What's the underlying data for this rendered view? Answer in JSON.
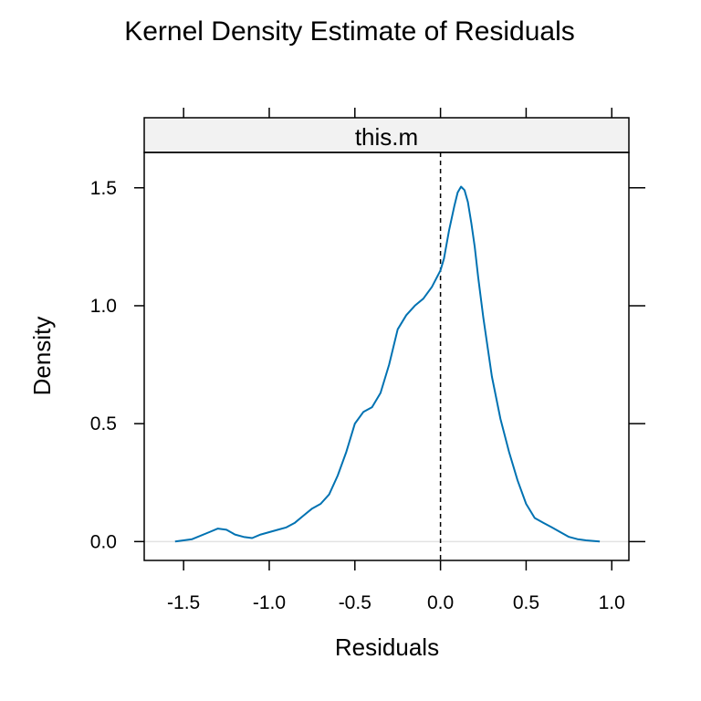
{
  "chart_data": {
    "type": "line",
    "title": "Kernel Density Estimate of Residuals",
    "panel_label": "this.m",
    "xlabel": "Residuals",
    "ylabel": "Density",
    "xlim": [
      -1.73,
      1.1
    ],
    "ylim": [
      -0.08,
      1.65
    ],
    "x_ticks": [
      -1.5,
      -1.0,
      -0.5,
      0.0,
      0.5,
      1.0
    ],
    "x_tick_labels": [
      "-1.5",
      "-1.0",
      "-0.5",
      "0.0",
      "0.5",
      "1.0"
    ],
    "y_ticks": [
      0.0,
      0.5,
      1.0,
      1.5
    ],
    "y_tick_labels": [
      "0.0",
      "0.5",
      "1.0",
      "1.5"
    ],
    "reference_line": {
      "x": 0.0,
      "style": "dashed"
    },
    "baseline": {
      "y": 0.0
    },
    "series": [
      {
        "color": "#0072B2",
        "x": [
          -1.55,
          -1.45,
          -1.35,
          -1.3,
          -1.25,
          -1.2,
          -1.15,
          -1.1,
          -1.05,
          -1.0,
          -0.95,
          -0.9,
          -0.85,
          -0.8,
          -0.75,
          -0.7,
          -0.65,
          -0.6,
          -0.55,
          -0.5,
          -0.45,
          -0.4,
          -0.35,
          -0.3,
          -0.25,
          -0.2,
          -0.15,
          -0.1,
          -0.05,
          0.0,
          0.02,
          0.05,
          0.08,
          0.1,
          0.12,
          0.14,
          0.16,
          0.18,
          0.2,
          0.22,
          0.25,
          0.3,
          0.35,
          0.4,
          0.45,
          0.5,
          0.55,
          0.6,
          0.65,
          0.7,
          0.75,
          0.8,
          0.85,
          0.93
        ],
        "y": [
          0.0,
          0.01,
          0.04,
          0.055,
          0.05,
          0.03,
          0.02,
          0.015,
          0.03,
          0.04,
          0.05,
          0.06,
          0.08,
          0.11,
          0.14,
          0.16,
          0.2,
          0.28,
          0.38,
          0.5,
          0.55,
          0.57,
          0.63,
          0.75,
          0.9,
          0.96,
          1.0,
          1.03,
          1.08,
          1.15,
          1.2,
          1.32,
          1.42,
          1.48,
          1.505,
          1.49,
          1.44,
          1.35,
          1.25,
          1.12,
          0.95,
          0.7,
          0.52,
          0.38,
          0.26,
          0.16,
          0.1,
          0.08,
          0.06,
          0.04,
          0.02,
          0.01,
          0.005,
          0.0
        ]
      }
    ]
  }
}
